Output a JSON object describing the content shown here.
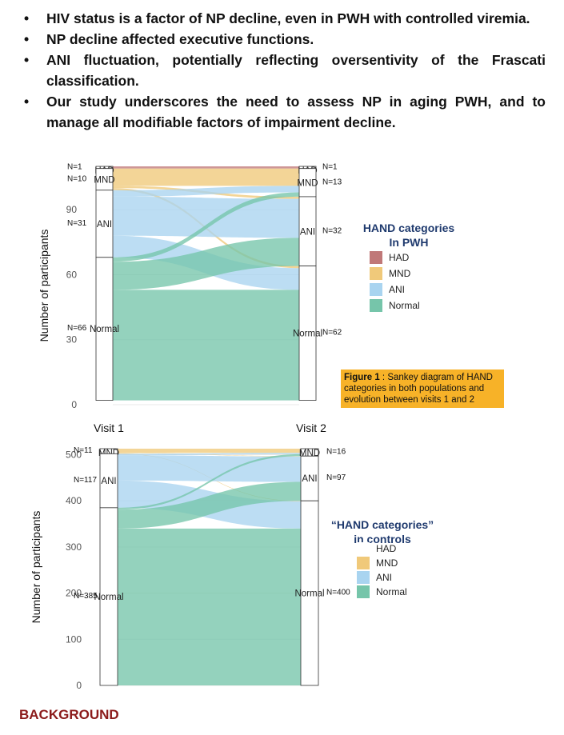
{
  "bullets": [
    "HIV status is a factor of NP decline, even in PWH with controlled viremia.",
    "NP decline affected executive functions.",
    "ANI fluctuation, potentially reflecting oversentivity of the Frascati classification.",
    "Our study underscores the need to assess NP in aging PWH, and to manage all modifiable factors of impairment decline."
  ],
  "bullet_symbol": "•",
  "caption": {
    "bold": "Figure 1",
    "text": " : Sankey diagram of HAND categories in both populations and evolution between visits 1 and 2"
  },
  "section_label": "BACKGROUND",
  "colors": {
    "HAD": "#c07878",
    "MND": "#f0c97a",
    "ANI": "#a9d4f0",
    "Normal": "#76c5aa",
    "caption_bg": "#f7b228",
    "legend_title": "#1f3a6e",
    "background_label": "#8b1a1a"
  },
  "chart_data": [
    {
      "type": "sankey",
      "ylabel": "Number of participants",
      "yticks": [
        0,
        30,
        60,
        90
      ],
      "ylim": [
        0,
        110
      ],
      "visit_labels": [
        "Visit 1",
        "Visit 2"
      ],
      "legend_title": [
        "HAND categories",
        "In PWH"
      ],
      "legend_entries": [
        "HAD",
        "MND",
        "ANI",
        "Normal"
      ],
      "categories": [
        "HAD",
        "MND",
        "ANI",
        "Normal"
      ],
      "visit1": [
        {
          "category": "HAD",
          "count": 1,
          "count_label": "N=1",
          "node_label": "HAD"
        },
        {
          "category": "MND",
          "count": 10,
          "count_label": "N=10",
          "node_label": "MND"
        },
        {
          "category": "ANI",
          "count": 31,
          "count_label": "N=31",
          "node_label": "ANI"
        },
        {
          "category": "Normal",
          "count": 66,
          "count_label": "N=66",
          "node_label": "Normal"
        }
      ],
      "visit2": [
        {
          "category": "HAD",
          "count": 1,
          "count_label": "N=1",
          "node_label": "HAD"
        },
        {
          "category": "MND",
          "count": 13,
          "count_label": "N=13",
          "node_label": "MND"
        },
        {
          "category": "ANI",
          "count": 32,
          "count_label": "N=32",
          "node_label": "ANI"
        },
        {
          "category": "Normal",
          "count": 62,
          "count_label": "N=62",
          "node_label": "Normal"
        }
      ],
      "flows": [
        {
          "from": "HAD",
          "to": "HAD",
          "value": 1
        },
        {
          "from": "MND",
          "to": "MND",
          "value": 8
        },
        {
          "from": "MND",
          "to": "ANI",
          "value": 1
        },
        {
          "from": "MND",
          "to": "Normal",
          "value": 1
        },
        {
          "from": "ANI",
          "to": "MND",
          "value": 3
        },
        {
          "from": "ANI",
          "to": "ANI",
          "value": 18
        },
        {
          "from": "ANI",
          "to": "Normal",
          "value": 10
        },
        {
          "from": "Normal",
          "to": "MND",
          "value": 2
        },
        {
          "from": "Normal",
          "to": "ANI",
          "value": 13
        },
        {
          "from": "Normal",
          "to": "Normal",
          "value": 51
        }
      ]
    },
    {
      "type": "sankey",
      "ylabel": "Number of participants",
      "yticks": [
        0,
        100,
        200,
        300,
        400,
        500
      ],
      "ylim": [
        0,
        513
      ],
      "legend_title": [
        "“HAND categories”",
        "in controls"
      ],
      "legend_entries": [
        "HAD",
        "MND",
        "ANI",
        "Normal"
      ],
      "categories": [
        "MND",
        "ANI",
        "Normal"
      ],
      "visit1": [
        {
          "category": "MND",
          "count": 11,
          "count_label": "N=11",
          "node_label": "MND"
        },
        {
          "category": "ANI",
          "count": 117,
          "count_label": "N=117",
          "node_label": "ANI"
        },
        {
          "category": "Normal",
          "count": 385,
          "count_label": "N=385",
          "node_label": "Normal"
        }
      ],
      "visit2": [
        {
          "category": "MND",
          "count": 16,
          "count_label": "N=16",
          "node_label": "MND"
        },
        {
          "category": "ANI",
          "count": 97,
          "count_label": "N=97",
          "node_label": "ANI"
        },
        {
          "category": "Normal",
          "count": 400,
          "count_label": "N=400",
          "node_label": "Normal"
        }
      ],
      "flows": [
        {
          "from": "MND",
          "to": "MND",
          "value": 9
        },
        {
          "from": "MND",
          "to": "ANI",
          "value": 1
        },
        {
          "from": "MND",
          "to": "Normal",
          "value": 1
        },
        {
          "from": "ANI",
          "to": "MND",
          "value": 3
        },
        {
          "from": "ANI",
          "to": "ANI",
          "value": 55
        },
        {
          "from": "ANI",
          "to": "Normal",
          "value": 59
        },
        {
          "from": "Normal",
          "to": "MND",
          "value": 4
        },
        {
          "from": "Normal",
          "to": "ANI",
          "value": 41
        },
        {
          "from": "Normal",
          "to": "Normal",
          "value": 340
        }
      ]
    }
  ]
}
